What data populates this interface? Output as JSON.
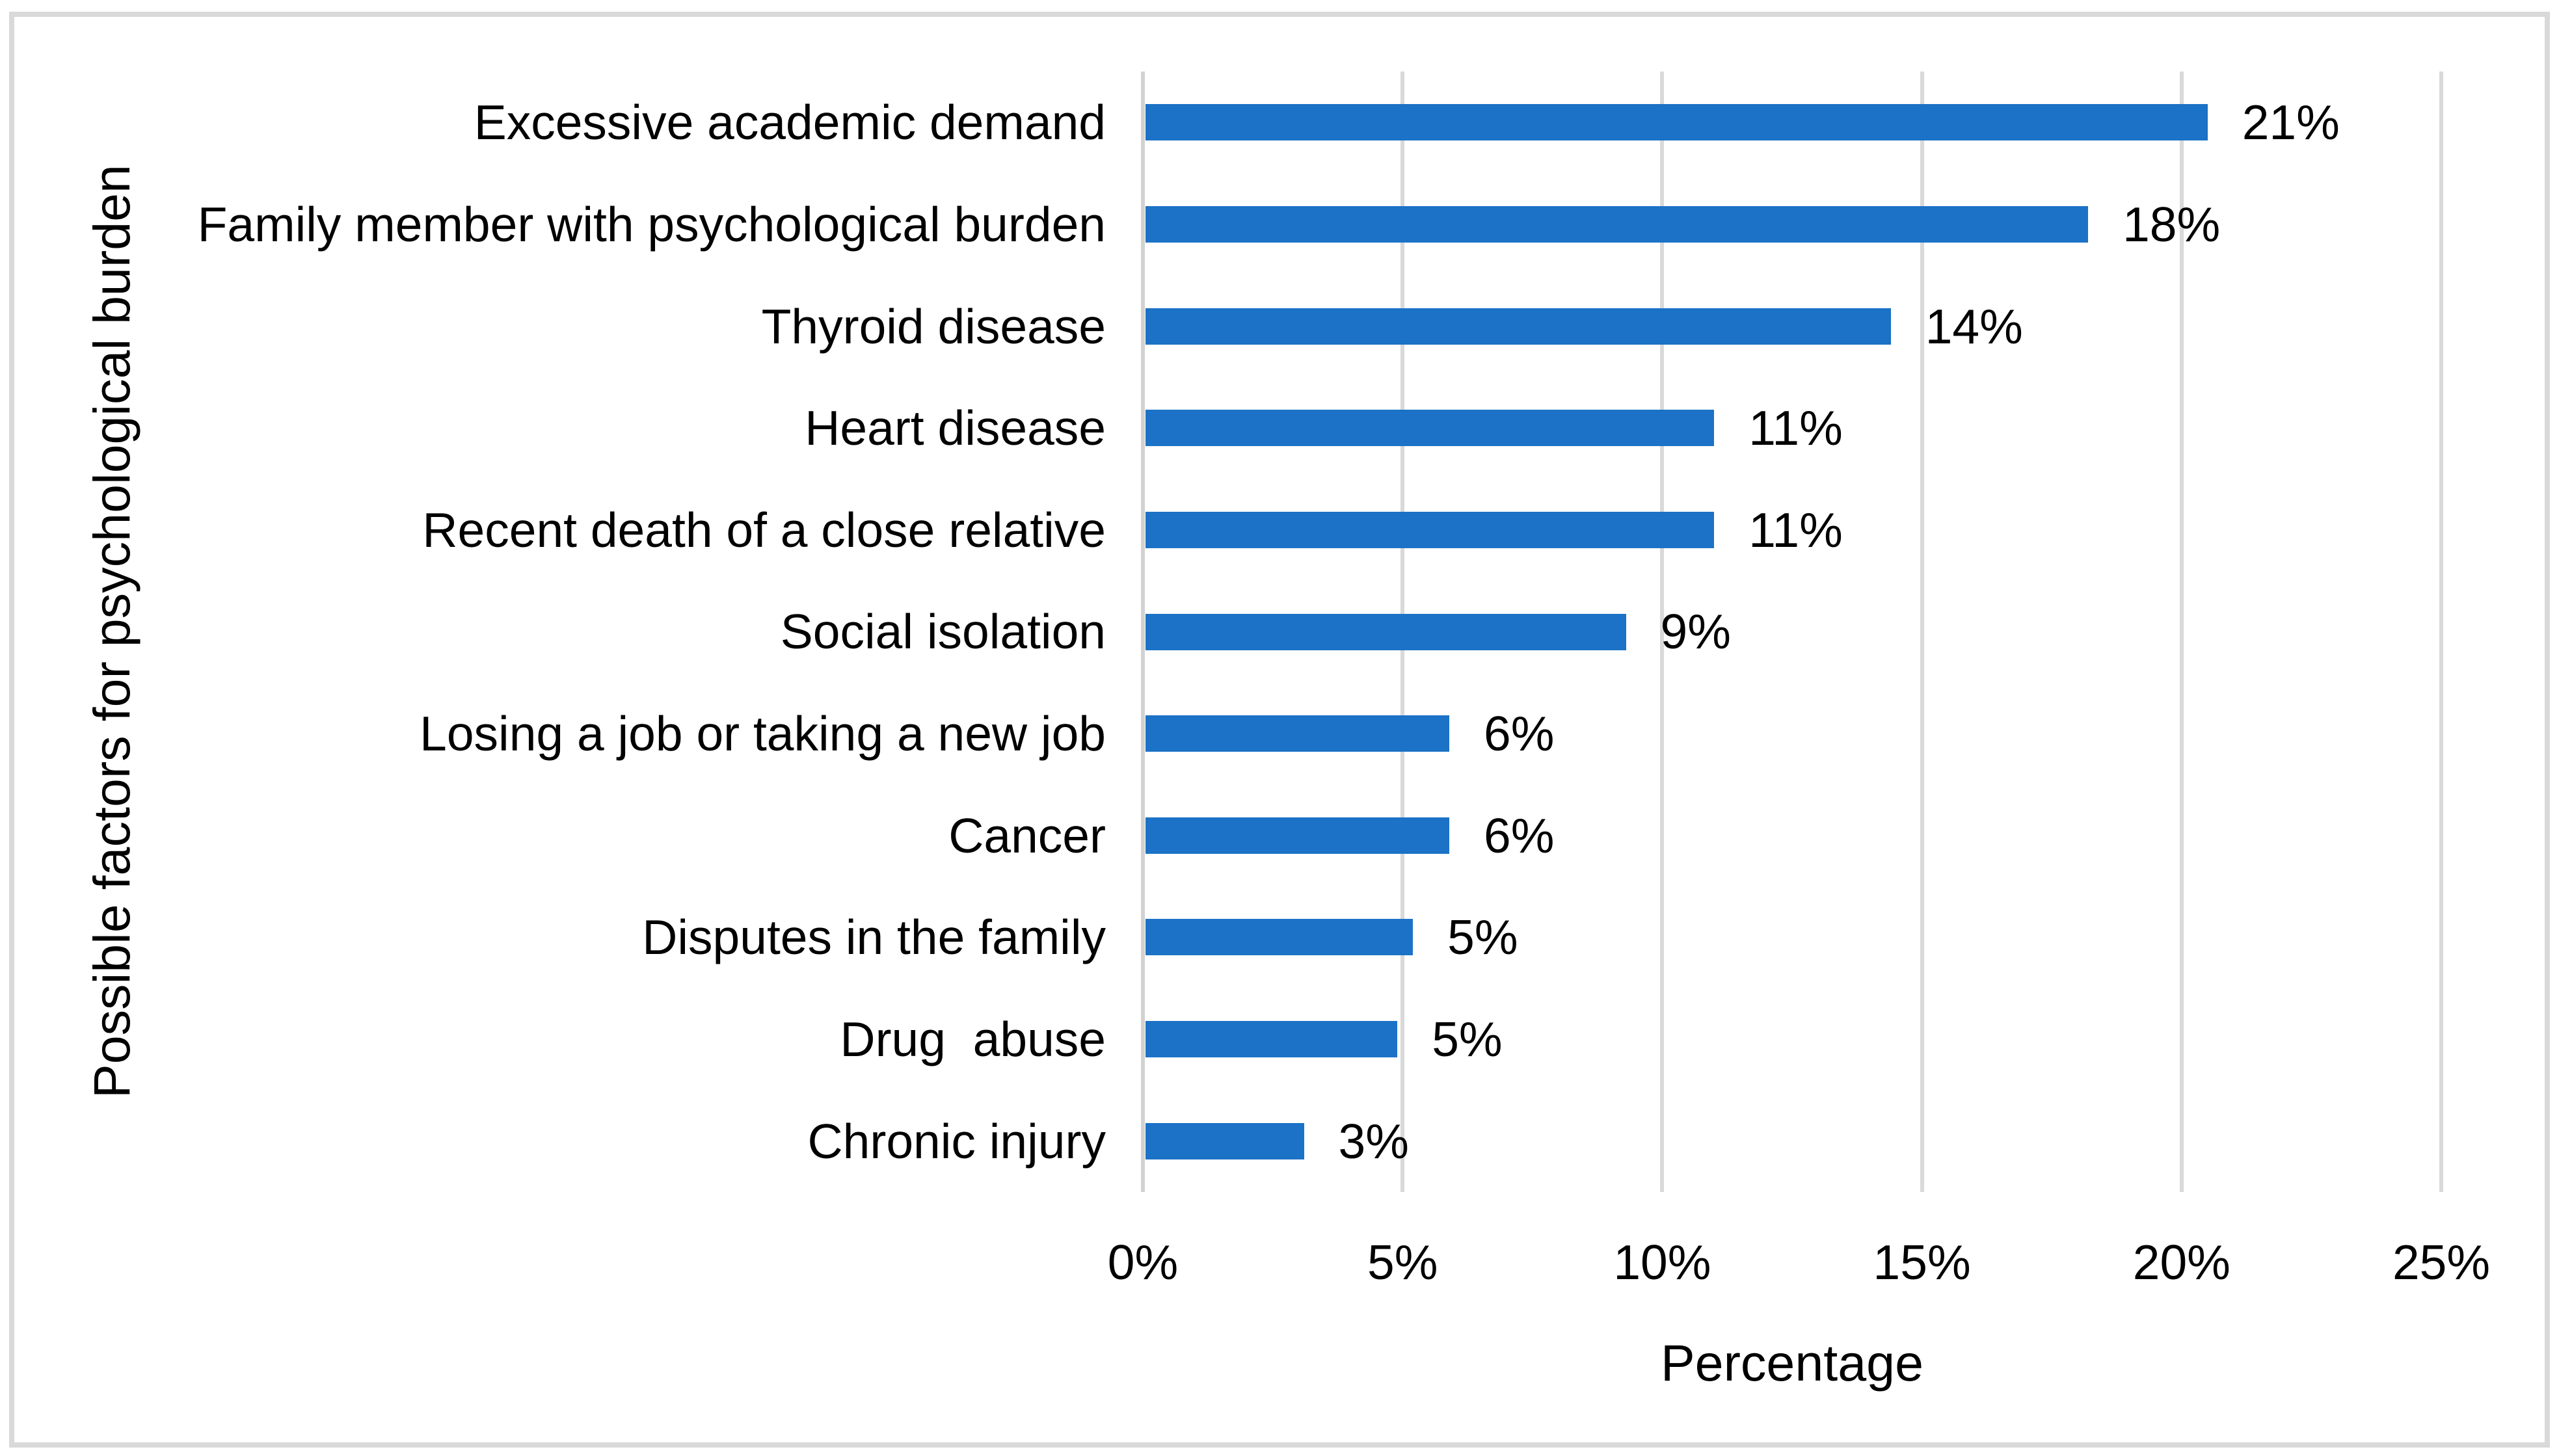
{
  "chart_data": {
    "type": "bar",
    "orientation": "horizontal",
    "title": "",
    "xlabel": "Percentage",
    "ylabel": "Possible factors for psychological burden",
    "categories": [
      "Excessive academic demand",
      "Family member with psychological burden",
      "Thyroid disease",
      "Heart disease",
      "Recent death of a close relative",
      "Social isolation",
      "Losing a job or taking a new job",
      "Cancer",
      "Disputes in the family",
      "Drug  abuse",
      "Chronic injury"
    ],
    "values": [
      21,
      18,
      14,
      11,
      11,
      9,
      6,
      6,
      5,
      5,
      3
    ],
    "value_labels": [
      "21%",
      "18%",
      "14%",
      "11%",
      "11%",
      "9%",
      "6%",
      "6%",
      "5%",
      "5%",
      "3%"
    ],
    "bar_lengths_pct": [
      20.5,
      18.2,
      14.4,
      11.0,
      11.0,
      9.3,
      5.9,
      5.9,
      5.2,
      4.9,
      3.1
    ],
    "x_ticks": [
      "0%",
      "5%",
      "10%",
      "15%",
      "20%",
      "25%"
    ],
    "xlim": [
      0,
      25
    ],
    "grid": "vertical-only",
    "legend": "none",
    "colors": {
      "bar": "#1B72C6",
      "gridline": "#D9D9D9",
      "axis_line": "#D2D2D2",
      "frame_border": "#D9D9D9",
      "text": "#000000",
      "background": "#FFFFFF"
    }
  }
}
